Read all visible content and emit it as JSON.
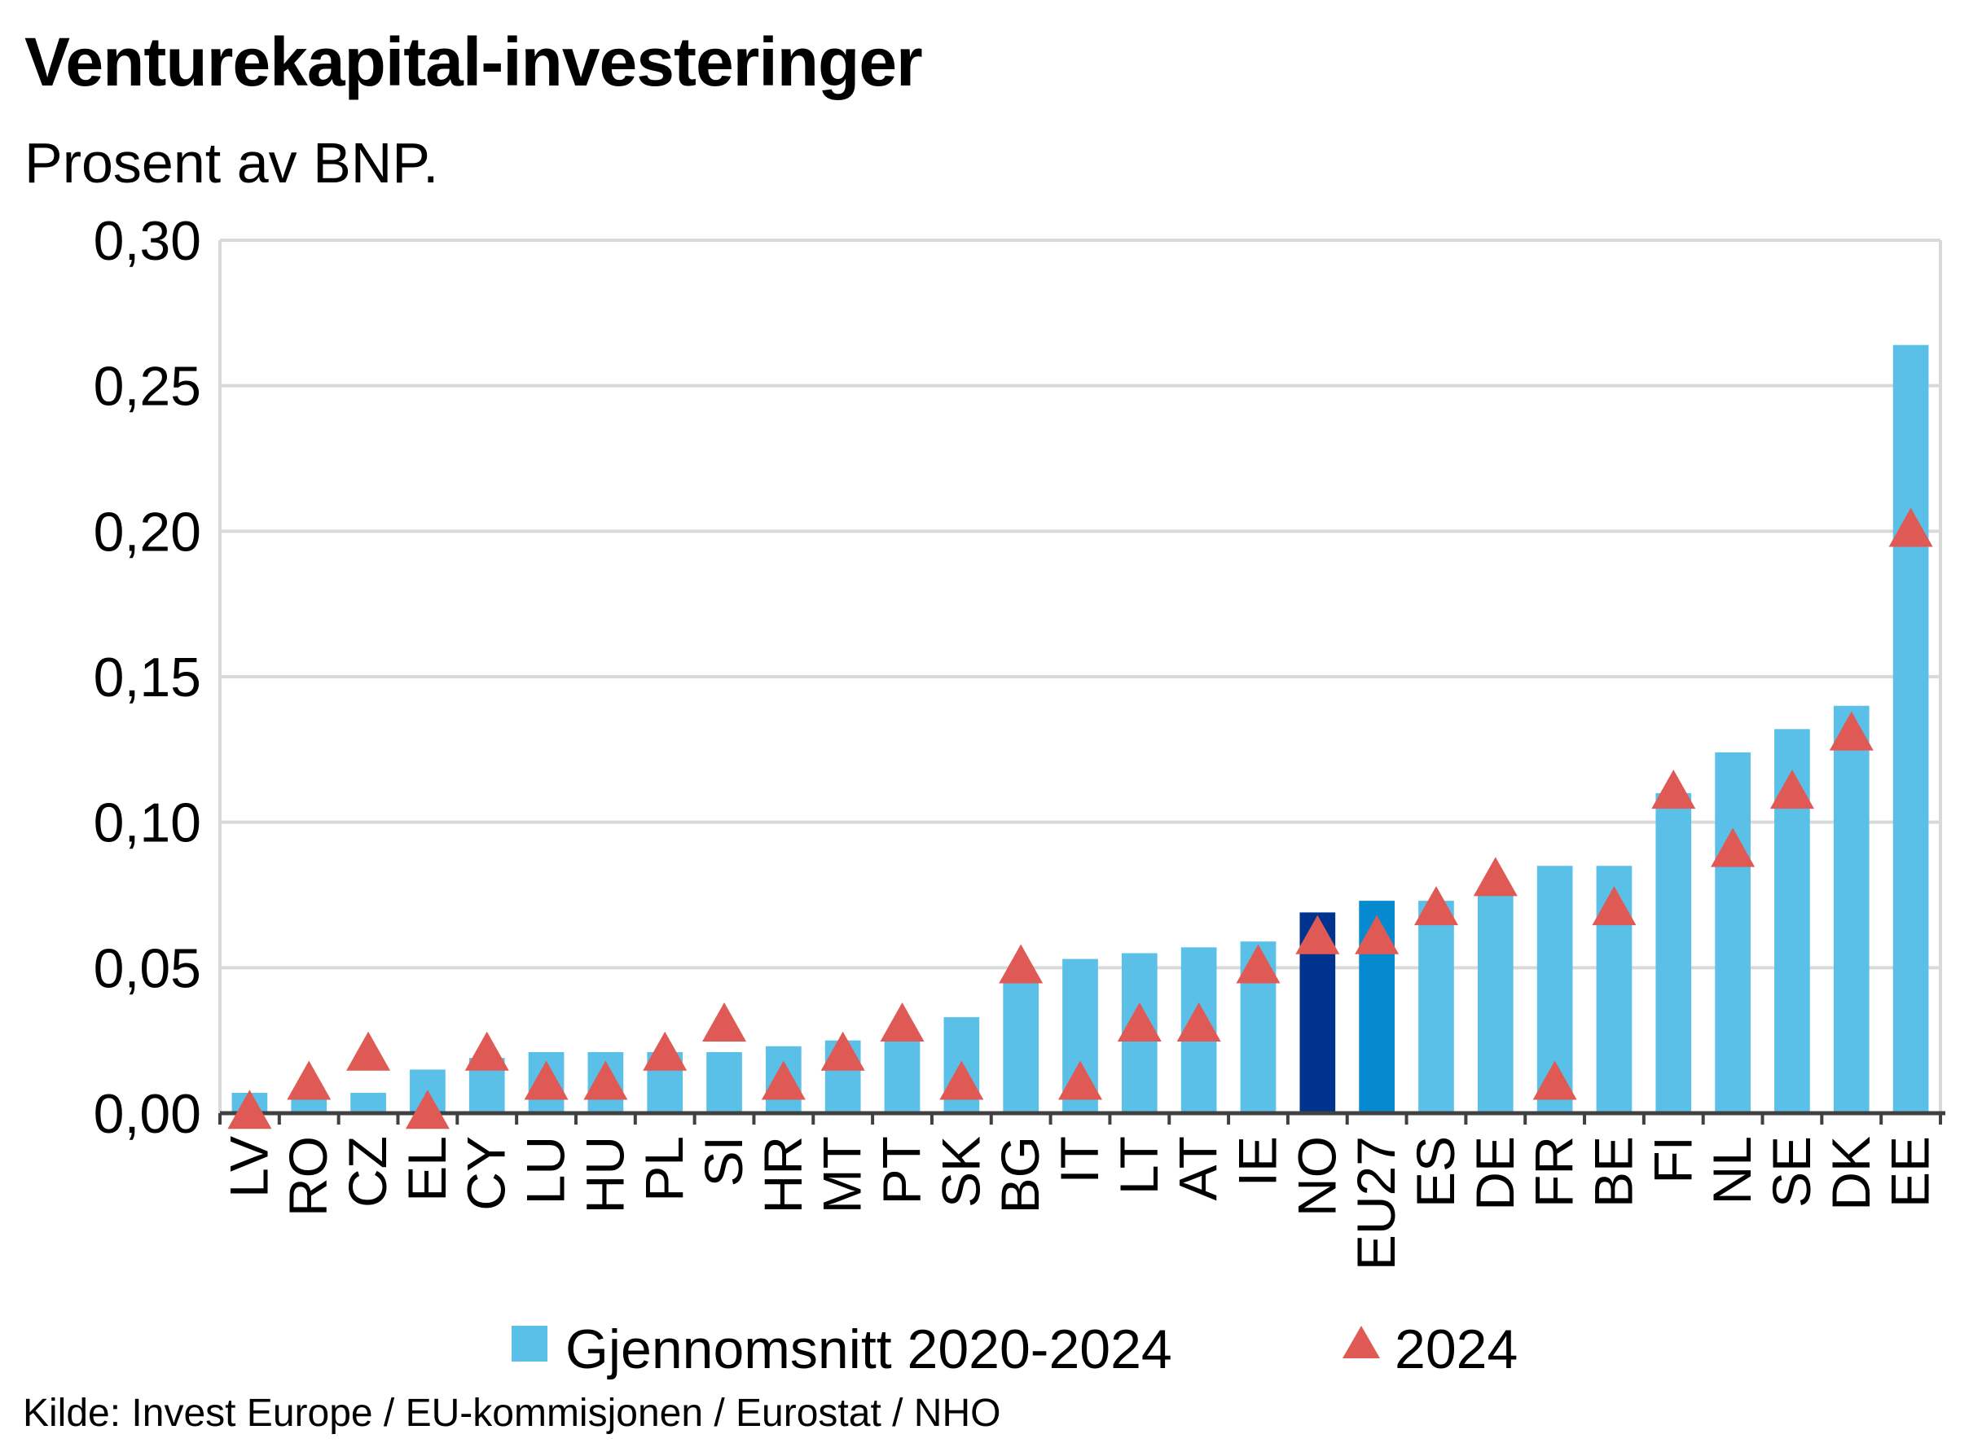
{
  "chart_data": {
    "type": "bar",
    "title": "Venturekapital-investeringer",
    "subtitle": "Prosent av BNP.",
    "source": "Kilde: Invest Europe / EU-kommisjonen / Eurostat / NHO",
    "xlabel": "",
    "ylabel": "",
    "ylim": [
      0,
      0.3
    ],
    "yticks": [
      "0,00",
      "0,05",
      "0,10",
      "0,15",
      "0,20",
      "0,25",
      "0,30"
    ],
    "ytick_values": [
      0,
      0.05,
      0.1,
      0.15,
      0.2,
      0.25,
      0.3
    ],
    "grid": true,
    "legend_position": "bottom",
    "categories": [
      "LV",
      "RO",
      "CZ",
      "EL",
      "CY",
      "LU",
      "HU",
      "PL",
      "SI",
      "HR",
      "MT",
      "PT",
      "SK",
      "BG",
      "IT",
      "LT",
      "AT",
      "IE",
      "NO",
      "EU27",
      "ES",
      "DE",
      "FR",
      "BE",
      "FI",
      "NL",
      "SE",
      "DK",
      "EE"
    ],
    "series": [
      {
        "name": "Gjennomsnitt 2020-2024",
        "marker": "bar",
        "color": "#5bc0e8",
        "values": [
          0.007,
          0.007,
          0.007,
          0.015,
          0.019,
          0.021,
          0.021,
          0.021,
          0.021,
          0.023,
          0.025,
          0.027,
          0.033,
          0.045,
          0.053,
          0.055,
          0.057,
          0.059,
          0.069,
          0.073,
          0.073,
          0.076,
          0.085,
          0.085,
          0.11,
          0.124,
          0.132,
          0.14,
          0.264
        ]
      },
      {
        "name": "2024",
        "marker": "triangle",
        "color": "#e05a55",
        "values": [
          0.0,
          0.01,
          0.02,
          0.0,
          0.02,
          0.01,
          0.01,
          0.02,
          0.03,
          0.01,
          0.02,
          0.03,
          0.01,
          0.05,
          0.01,
          0.03,
          0.03,
          0.05,
          0.06,
          0.06,
          0.07,
          0.08,
          0.01,
          0.07,
          0.11,
          0.09,
          0.11,
          0.13,
          0.2
        ]
      }
    ],
    "highlight_colors": {
      "NO": "#00338d",
      "EU27": "#0589cf"
    },
    "axis_color": "#404040",
    "grid_color": "#d9d9d9"
  }
}
